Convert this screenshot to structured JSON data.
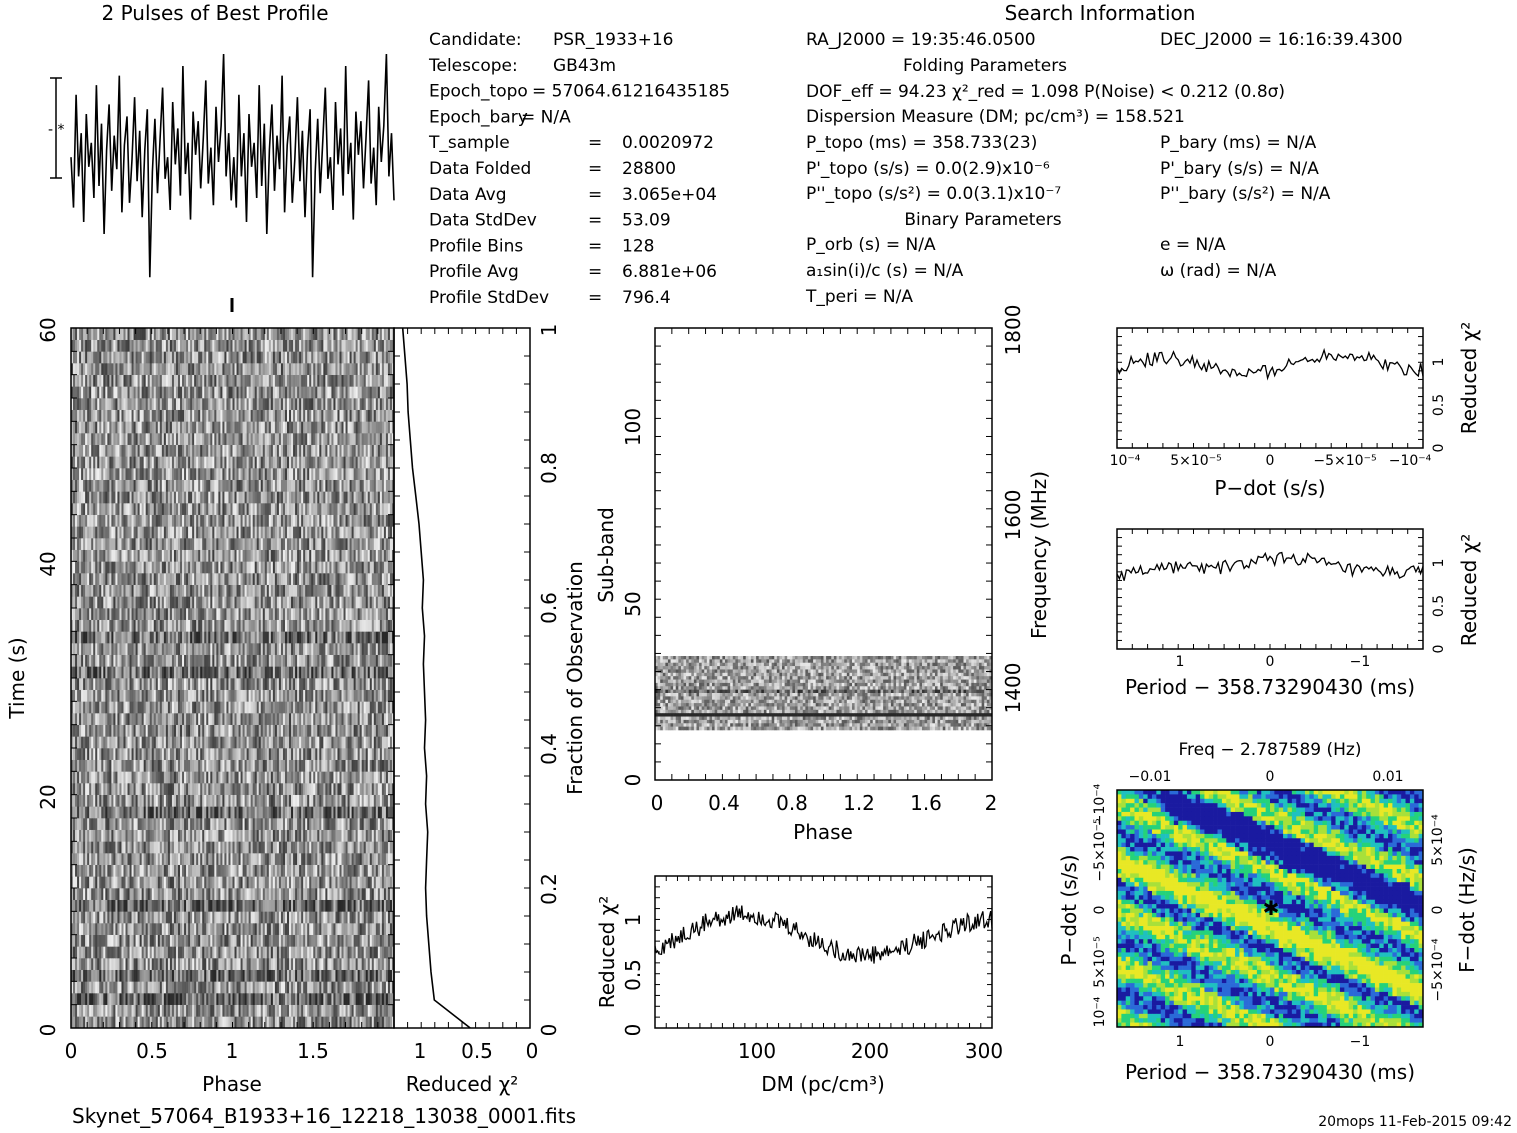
{
  "header": {
    "profile_title": "2 Pulses of Best Profile",
    "search_title": "Search Information",
    "folding_title": "Folding Parameters",
    "binary_title": "Binary Parameters",
    "filename": "Skynet_57064_B1933+16_12218_13038_0001.fits",
    "footer_stamp": "20mops  11-Feb-2015 09:42"
  },
  "candidate_info": [
    {
      "label": "Candidate:",
      "value": "PSR_1933+16"
    },
    {
      "label": "Telescope:",
      "value": "GB43m"
    },
    {
      "label": "Epoch_topo",
      "value": "= 57064.61216435185"
    },
    {
      "label": "Epoch_bary",
      "value": "= N/A"
    },
    {
      "label": "T_sample",
      "value": "0.0020972"
    },
    {
      "label": "Data Folded",
      "value": "28800"
    },
    {
      "label": "Data Avg",
      "value": "3.065e+04"
    },
    {
      "label": "Data StdDev",
      "value": "53.09"
    },
    {
      "label": "Profile Bins",
      "value": "128"
    },
    {
      "label": "Profile Avg",
      "value": "6.881e+06"
    },
    {
      "label": "Profile StdDev",
      "value": "796.4"
    }
  ],
  "search_info": {
    "ra": "RA_J2000 = 19:35:46.0500",
    "dec": "DEC_J2000 = 16:16:39.4300",
    "dof": "DOF_eff = 94.23  χ²_red = 1.098  P(Noise) < 0.212  (0.8σ)",
    "dm": "Dispersion Measure (DM; pc/cm³) = 158.521",
    "ptopo": "P_topo (ms) =  358.733(23)",
    "pbary": "P_bary (ms) = N/A",
    "pdot_topo": "P'_topo (s/s) = 0.0(2.9)x10⁻⁶",
    "pdot_bary": "P'_bary (s/s) = N/A",
    "pddot_topo": "P''_topo (s/s²) = 0.0(3.1)x10⁻⁷",
    "pddot_bary": "P''_bary (s/s²) = N/A",
    "porb": "P_orb (s) = N/A",
    "ecc": "e = N/A",
    "a1sini": "a₁sin(i)/c (s) = N/A",
    "omega": "ω (rad) = N/A",
    "tperi": "T_peri = N/A"
  },
  "chart_data": [
    {
      "type": "line",
      "id": "profile",
      "title": "2 Pulses of Best Profile",
      "xlabel": "",
      "ylabel": "",
      "xlim": [
        0,
        2
      ],
      "series": [
        {
          "values": [
            0.52,
            0.31,
            0.78,
            0.44,
            0.62,
            0.25,
            0.7,
            0.48,
            0.58,
            0.35,
            0.82,
            0.4,
            0.66,
            0.2,
            0.55,
            0.74,
            0.38,
            0.61,
            0.47,
            0.86,
            0.29,
            0.57,
            0.69,
            0.33,
            0.51,
            0.77,
            0.42,
            0.63,
            0.27,
            0.55,
            0.72,
            0.02,
            0.46,
            0.68,
            0.37,
            0.59,
            0.81,
            0.43,
            0.52,
            0.3,
            0.75,
            0.49,
            0.64,
            0.36,
            0.9,
            0.45,
            0.58,
            0.26,
            0.71,
            0.53,
            0.67,
            0.39,
            0.6,
            0.84,
            0.41,
            0.56,
            0.32,
            0.73,
            0.5,
            0.65,
            0.95,
            0.44,
            0.62,
            0.34,
            0.52,
            0.31,
            0.78,
            0.44,
            0.62,
            0.25,
            0.7,
            0.48,
            0.58,
            0.35,
            0.82,
            0.4,
            0.66,
            0.2,
            0.55,
            0.74,
            0.38,
            0.61,
            0.47,
            0.86,
            0.29,
            0.57,
            0.69,
            0.33,
            0.51,
            0.77,
            0.42,
            0.63,
            0.27,
            0.55,
            0.72,
            0.02,
            0.46,
            0.68,
            0.37,
            0.59,
            0.81,
            0.43,
            0.52,
            0.3,
            0.75,
            0.49,
            0.64,
            0.36,
            0.9,
            0.45,
            0.58,
            0.26,
            0.71,
            0.53,
            0.67,
            0.39,
            0.6,
            0.84,
            0.41,
            0.56,
            0.32,
            0.73,
            0.5,
            0.65,
            0.95,
            0.44,
            0.62,
            0.34
          ]
        }
      ]
    },
    {
      "type": "heatmap",
      "id": "time-phase",
      "xlabel": "Phase",
      "ylabel": "Time (s)",
      "xlim": [
        0,
        2
      ],
      "ylim": [
        0,
        60
      ],
      "xticks": [
        "0",
        "0.5",
        "1",
        "1.5"
      ],
      "yticks": [
        "0",
        "20",
        "40",
        "60"
      ]
    },
    {
      "type": "line",
      "id": "time-chi2",
      "xlabel": "Reduced χ²",
      "ylabel": "Fraction of Observation",
      "xticks": [
        "1",
        "0.5",
        "0"
      ],
      "yticks": [
        "0",
        "0.2",
        "0.4",
        "0.6",
        "0.8",
        "1"
      ],
      "x": [
        0.55,
        0.88,
        0.91,
        0.93,
        0.95,
        0.96,
        0.95,
        0.94,
        0.96,
        0.95,
        0.97,
        0.96,
        0.97,
        0.98,
        0.97,
        0.99,
        0.98,
        1.0,
        1.02,
        1.05,
        1.08,
        1.1,
        1.12,
        1.13,
        1.15,
        1.17
      ],
      "y": [
        0.0,
        0.04,
        0.08,
        0.12,
        0.16,
        0.2,
        0.24,
        0.28,
        0.32,
        0.36,
        0.4,
        0.44,
        0.48,
        0.52,
        0.56,
        0.6,
        0.64,
        0.68,
        0.72,
        0.76,
        0.8,
        0.84,
        0.88,
        0.92,
        0.96,
        1.0
      ]
    },
    {
      "type": "heatmap",
      "id": "subband-phase",
      "xlabel": "Phase",
      "ylabel": "Sub-band",
      "y2label": "Frequency (MHz)",
      "xticks": [
        "0",
        "0.4",
        "0.8",
        "1.2",
        "1.6",
        "2"
      ],
      "yticks": [
        "0",
        "50",
        "100"
      ],
      "y2ticks": [
        "1400",
        "1600",
        "1800"
      ],
      "xlim": [
        0,
        2
      ],
      "ylim": [
        0,
        128
      ]
    },
    {
      "type": "line",
      "id": "dm-chi2",
      "xlabel": "DM (pc/cm³)",
      "ylabel": "Reduced χ²",
      "xticks": [
        "100",
        "200",
        "300"
      ],
      "yticks": [
        "0",
        "0.5",
        "1"
      ],
      "xlim": [
        10,
        305
      ],
      "ylim": [
        0,
        1.4
      ]
    },
    {
      "type": "line",
      "id": "pdot-chi2",
      "xlabel": "P−dot (s/s)",
      "ylabel": "Reduced χ²",
      "xticks": [
        "10⁻⁴",
        "5×10⁻⁵",
        "0",
        "−5×10⁻⁵",
        "−10⁻⁴"
      ],
      "yticks": [
        "0",
        "0.5",
        "1"
      ],
      "ylim": [
        0,
        1.4
      ]
    },
    {
      "type": "line",
      "id": "period-chi2",
      "xlabel": "Period − 358.73290430 (ms)",
      "ylabel": "Reduced χ²",
      "xticks": [
        "1",
        "0",
        "−1"
      ],
      "yticks": [
        "0",
        "0.5",
        "1"
      ],
      "ylim": [
        0,
        1.4
      ]
    },
    {
      "type": "heatmap",
      "id": "period-pdot",
      "title": "Freq − 2.787589 (Hz)",
      "xlabel": "Period − 358.73290430 (ms)",
      "ylabel": "P−dot (s/s)",
      "y2label": "F−dot (Hz/s)",
      "xticks": [
        "1",
        "0",
        "−1"
      ],
      "x2ticks": [
        "−0.01",
        "0",
        "0.01"
      ],
      "yticks": [
        "10⁻⁴",
        "5×10⁻⁵",
        "0",
        "−5×10⁻⁵",
        "−10⁻⁴"
      ],
      "y2ticks": [
        "−5×10⁻⁴",
        "0",
        "5×10⁻⁴"
      ],
      "colors": [
        "#1a1aa0",
        "#2a6ad8",
        "#1fc0c0",
        "#25d27a",
        "#a8e03a",
        "#e8e825"
      ]
    }
  ]
}
